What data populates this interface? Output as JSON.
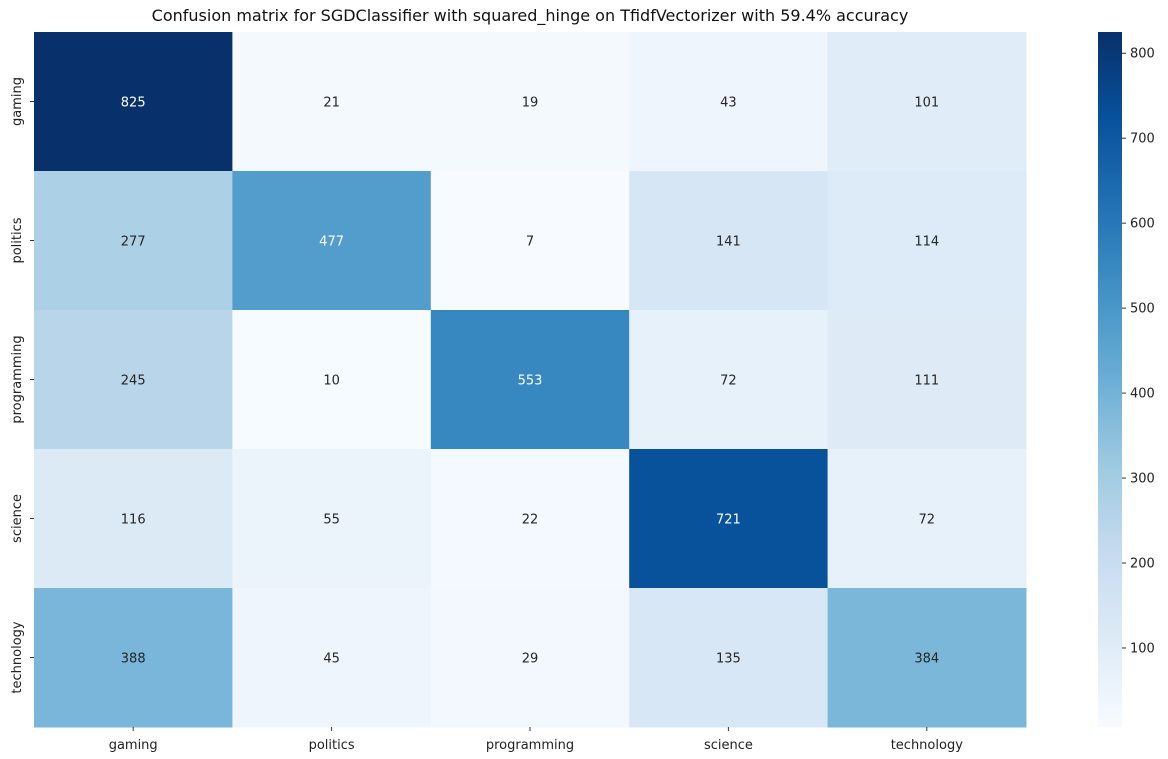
{
  "chart_data": {
    "type": "heatmap",
    "title": "Confusion matrix for SGDClassifier with squared_hinge on TfidfVectorizer with 59.4% accuracy",
    "xlabel": "",
    "ylabel": "",
    "x_categories": [
      "gaming",
      "politics",
      "programming",
      "science",
      "technology"
    ],
    "y_categories": [
      "gaming",
      "politics",
      "programming",
      "science",
      "technology"
    ],
    "values": [
      [
        825,
        21,
        19,
        43,
        101
      ],
      [
        277,
        477,
        7,
        141,
        114
      ],
      [
        245,
        10,
        553,
        72,
        111
      ],
      [
        116,
        55,
        22,
        721,
        72
      ],
      [
        388,
        45,
        29,
        135,
        384
      ]
    ],
    "colormap": "Blues",
    "color_range": [
      7,
      825
    ],
    "colorbar_ticks": [
      100,
      200,
      300,
      400,
      500,
      600,
      700,
      800
    ],
    "annotations": true
  }
}
